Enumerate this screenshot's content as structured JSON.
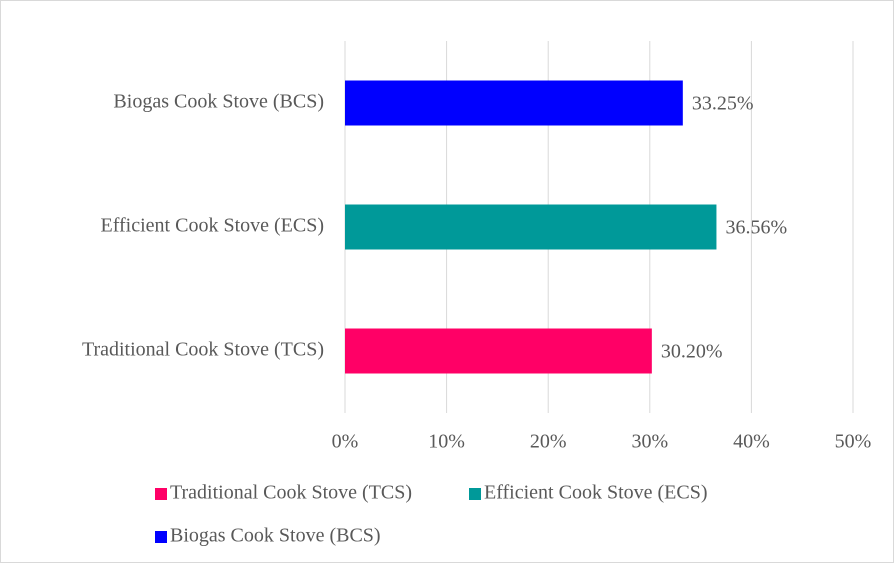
{
  "chart_data": {
    "type": "barh",
    "categories": [
      "Traditional Cook Stove (TCS)",
      "Efficient Cook Stove (ECS)",
      "Biogas Cook Stove (BCS)"
    ],
    "values": [
      30.2,
      36.56,
      33.25
    ],
    "value_labels": [
      "30.20%",
      "36.56%",
      "33.25%"
    ],
    "colors": [
      "#ff0066",
      "#009999",
      "#0000ff"
    ],
    "xlim": [
      0,
      50
    ],
    "xticks": [
      {
        "value": 0,
        "label": "0%"
      },
      {
        "value": 10,
        "label": "10%"
      },
      {
        "value": 20,
        "label": "20%"
      },
      {
        "value": 30,
        "label": "30%"
      },
      {
        "value": 40,
        "label": "40%"
      },
      {
        "value": 50,
        "label": "50%"
      }
    ],
    "grid": true,
    "legend": "bottom"
  }
}
